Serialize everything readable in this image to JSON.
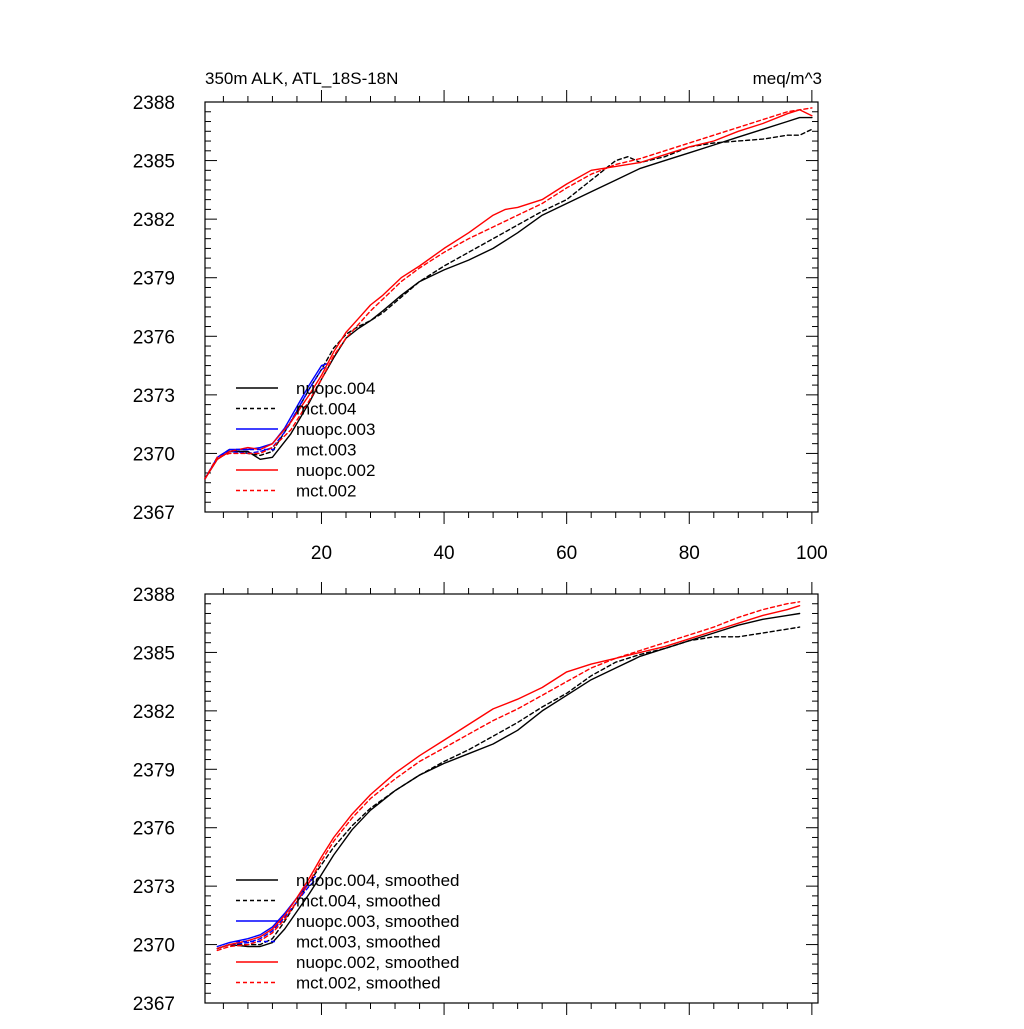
{
  "chart_data": [
    {
      "type": "line",
      "title": "350m ALK, ATL_18S-18N",
      "units_label": "meq/m^3",
      "xlabel": "",
      "ylabel": "",
      "xlim": [
        1,
        101
      ],
      "ylim": [
        2367,
        2388
      ],
      "xticks": [
        20,
        40,
        60,
        80,
        100
      ],
      "yticks": [
        2367,
        2370,
        2373,
        2376,
        2379,
        2382,
        2385,
        2388
      ],
      "grid": false,
      "legend_position": "lower-left",
      "series": [
        {
          "name": "nuopc.004",
          "color": "#000000",
          "dash": "solid",
          "x": [
            1,
            3,
            5,
            8,
            10,
            12,
            15,
            18,
            20,
            22,
            24,
            26,
            28,
            30,
            33,
            36,
            40,
            44,
            48,
            52,
            56,
            60,
            64,
            68,
            72,
            76,
            80,
            84,
            88,
            92,
            96,
            98,
            100
          ],
          "y": [
            2368.7,
            2369.7,
            2370.1,
            2370.1,
            2369.7,
            2369.8,
            2371.0,
            2372.6,
            2373.8,
            2374.9,
            2375.9,
            2376.4,
            2376.8,
            2377.3,
            2378.1,
            2378.8,
            2379.4,
            2379.9,
            2380.5,
            2381.3,
            2382.2,
            2382.8,
            2383.4,
            2384.0,
            2384.6,
            2385.0,
            2385.4,
            2385.8,
            2386.2,
            2386.6,
            2387.0,
            2387.2,
            2387.2
          ]
        },
        {
          "name": "mct.004",
          "color": "#000000",
          "dash": "dashed",
          "x": [
            1,
            3,
            5,
            8,
            10,
            12,
            15,
            18,
            20,
            22,
            24,
            26,
            28,
            30,
            33,
            36,
            40,
            44,
            48,
            52,
            56,
            60,
            64,
            68,
            70,
            72,
            76,
            80,
            84,
            88,
            92,
            96,
            98,
            100
          ],
          "y": [
            2368.7,
            2369.8,
            2370.2,
            2370.0,
            2369.9,
            2370.1,
            2371.6,
            2373.3,
            2374.3,
            2375.4,
            2376.1,
            2376.5,
            2376.8,
            2377.2,
            2378.0,
            2378.8,
            2379.6,
            2380.3,
            2381.0,
            2381.7,
            2382.4,
            2383.0,
            2384.0,
            2385.0,
            2385.2,
            2384.9,
            2385.2,
            2385.7,
            2385.9,
            2386.0,
            2386.1,
            2386.3,
            2386.3,
            2386.6
          ]
        },
        {
          "name": "nuopc.003",
          "color": "#0000ff",
          "dash": "solid",
          "x": [
            1,
            3,
            5,
            8,
            10,
            12,
            14,
            16,
            18,
            20,
            21
          ],
          "y": [
            2368.7,
            2369.8,
            2370.2,
            2370.2,
            2370.3,
            2370.5,
            2371.3,
            2372.4,
            2373.5,
            2374.5,
            2374.6
          ]
        },
        {
          "name": "mct.003",
          "color": "#0000ff",
          "dash": "dashed",
          "x": [
            1,
            3,
            5,
            8,
            10,
            12,
            14,
            16,
            18,
            20,
            21
          ],
          "y": [
            2368.7,
            2369.8,
            2370.1,
            2370.0,
            2370.1,
            2370.3,
            2371.1,
            2372.2,
            2373.3,
            2374.3,
            2374.5
          ]
        },
        {
          "name": "nuopc.002",
          "color": "#ff0000",
          "dash": "solid",
          "x": [
            1,
            3,
            5,
            8,
            10,
            12,
            15,
            18,
            20,
            22,
            24,
            26,
            28,
            30,
            33,
            36,
            40,
            44,
            48,
            50,
            52,
            56,
            60,
            64,
            68,
            72,
            76,
            80,
            84,
            88,
            92,
            96,
            98,
            100
          ],
          "y": [
            2368.7,
            2369.7,
            2370.1,
            2370.3,
            2370.2,
            2370.5,
            2371.6,
            2373.0,
            2374.0,
            2375.2,
            2376.2,
            2376.9,
            2377.6,
            2378.1,
            2379.0,
            2379.6,
            2380.5,
            2381.3,
            2382.2,
            2382.5,
            2382.6,
            2383.0,
            2383.8,
            2384.5,
            2384.7,
            2384.9,
            2385.3,
            2385.7,
            2386.0,
            2386.5,
            2386.9,
            2387.4,
            2387.6,
            2387.3
          ]
        },
        {
          "name": "mct.002",
          "color": "#ff0000",
          "dash": "dashed",
          "x": [
            1,
            3,
            5,
            8,
            10,
            12,
            15,
            18,
            20,
            22,
            24,
            26,
            28,
            30,
            33,
            36,
            40,
            44,
            48,
            52,
            56,
            60,
            64,
            68,
            72,
            76,
            80,
            84,
            88,
            92,
            96,
            98,
            100
          ],
          "y": [
            2368.7,
            2369.8,
            2370.0,
            2370.0,
            2370.0,
            2370.3,
            2371.2,
            2372.7,
            2373.8,
            2375.0,
            2375.9,
            2376.6,
            2377.3,
            2377.9,
            2378.8,
            2379.5,
            2380.3,
            2381.0,
            2381.6,
            2382.2,
            2382.8,
            2383.6,
            2384.3,
            2384.8,
            2385.1,
            2385.5,
            2385.9,
            2386.3,
            2386.7,
            2387.1,
            2387.5,
            2387.6,
            2387.7
          ]
        }
      ]
    },
    {
      "type": "line",
      "title": "",
      "xlabel": "",
      "ylabel": "",
      "xlim": [
        1,
        101
      ],
      "ylim": [
        2367,
        2388
      ],
      "xticks": [
        20,
        40,
        60,
        80,
        100
      ],
      "yticks": [
        2367,
        2370,
        2373,
        2376,
        2379,
        2382,
        2385,
        2388
      ],
      "grid": false,
      "legend_position": "lower-left",
      "series": [
        {
          "name": "nuopc.004, smoothed",
          "color": "#000000",
          "dash": "solid",
          "x": [
            3,
            5,
            8,
            10,
            12,
            14,
            16,
            18,
            20,
            22,
            25,
            28,
            32,
            36,
            40,
            44,
            48,
            52,
            56,
            60,
            64,
            68,
            72,
            76,
            80,
            84,
            88,
            92,
            96,
            98
          ],
          "y": [
            2369.8,
            2370.0,
            2369.9,
            2369.9,
            2370.1,
            2370.8,
            2371.7,
            2372.6,
            2373.6,
            2374.6,
            2375.9,
            2376.9,
            2377.9,
            2378.7,
            2379.3,
            2379.8,
            2380.3,
            2381.0,
            2382.0,
            2382.8,
            2383.6,
            2384.2,
            2384.8,
            2385.2,
            2385.6,
            2386.0,
            2386.4,
            2386.7,
            2386.9,
            2387.0
          ]
        },
        {
          "name": "mct.004, smoothed",
          "color": "#000000",
          "dash": "dashed",
          "x": [
            3,
            5,
            8,
            10,
            12,
            14,
            16,
            18,
            20,
            22,
            25,
            28,
            32,
            36,
            40,
            44,
            48,
            52,
            56,
            60,
            64,
            68,
            70,
            72,
            76,
            80,
            84,
            88,
            92,
            96,
            98
          ],
          "y": [
            2369.8,
            2370.0,
            2370.0,
            2370.0,
            2370.3,
            2371.2,
            2372.2,
            2373.2,
            2374.1,
            2375.0,
            2376.1,
            2377.0,
            2377.9,
            2378.7,
            2379.4,
            2380.0,
            2380.7,
            2381.4,
            2382.2,
            2382.9,
            2383.8,
            2384.5,
            2384.7,
            2384.9,
            2385.2,
            2385.6,
            2385.8,
            2385.8,
            2386.0,
            2386.2,
            2386.3
          ]
        },
        {
          "name": "nuopc.003, smoothed",
          "color": "#0000ff",
          "dash": "solid",
          "x": [
            3,
            5,
            8,
            10,
            12,
            14,
            16,
            18,
            19
          ],
          "y": [
            2369.9,
            2370.1,
            2370.3,
            2370.5,
            2370.9,
            2371.6,
            2372.4,
            2373.2,
            2373.5
          ]
        },
        {
          "name": "mct.003, smoothed",
          "color": "#0000ff",
          "dash": "dashed",
          "x": [
            3,
            5,
            8,
            10,
            12,
            14,
            16,
            18,
            19
          ],
          "y": [
            2369.8,
            2370.0,
            2370.1,
            2370.3,
            2370.7,
            2371.4,
            2372.2,
            2373.0,
            2373.3
          ]
        },
        {
          "name": "nuopc.002, smoothed",
          "color": "#ff0000",
          "dash": "solid",
          "x": [
            3,
            5,
            8,
            10,
            12,
            14,
            16,
            18,
            20,
            22,
            25,
            28,
            32,
            36,
            40,
            44,
            48,
            52,
            56,
            60,
            64,
            68,
            72,
            76,
            80,
            84,
            88,
            92,
            96,
            98
          ],
          "y": [
            2369.8,
            2370.0,
            2370.2,
            2370.4,
            2370.8,
            2371.5,
            2372.4,
            2373.4,
            2374.5,
            2375.5,
            2376.7,
            2377.7,
            2378.8,
            2379.7,
            2380.5,
            2381.3,
            2382.1,
            2382.6,
            2383.2,
            2384.0,
            2384.4,
            2384.7,
            2385.0,
            2385.3,
            2385.7,
            2386.1,
            2386.5,
            2386.9,
            2387.2,
            2387.4
          ]
        },
        {
          "name": "mct.002, smoothed",
          "color": "#ff0000",
          "dash": "dashed",
          "x": [
            3,
            5,
            8,
            10,
            12,
            14,
            16,
            18,
            20,
            22,
            25,
            28,
            32,
            36,
            40,
            44,
            48,
            52,
            56,
            60,
            64,
            68,
            72,
            76,
            80,
            84,
            88,
            92,
            96,
            98
          ],
          "y": [
            2369.7,
            2369.9,
            2370.0,
            2370.2,
            2370.6,
            2371.3,
            2372.2,
            2373.2,
            2374.3,
            2375.3,
            2376.5,
            2377.5,
            2378.5,
            2379.4,
            2380.1,
            2380.8,
            2381.5,
            2382.1,
            2382.8,
            2383.5,
            2384.2,
            2384.7,
            2385.1,
            2385.5,
            2385.9,
            2386.3,
            2386.8,
            2387.2,
            2387.5,
            2387.6
          ]
        }
      ]
    }
  ]
}
